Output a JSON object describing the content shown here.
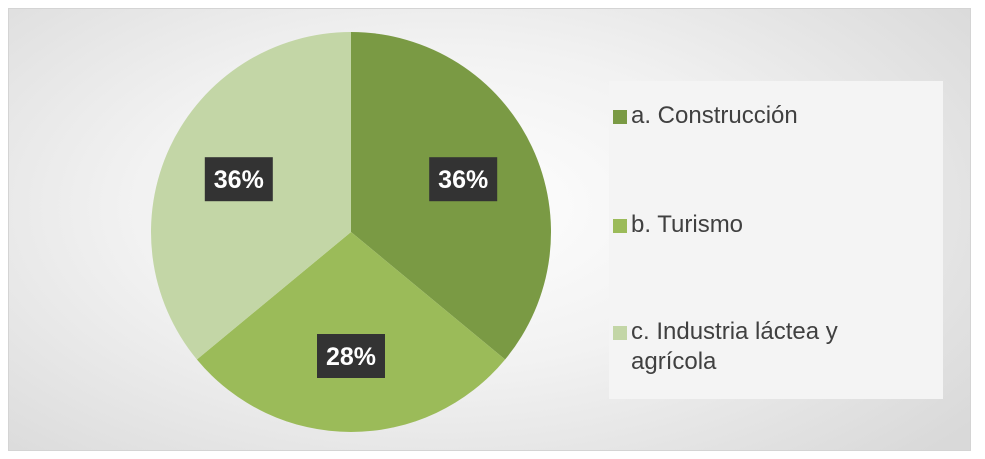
{
  "chart_data": {
    "type": "pie",
    "title": "",
    "slices": [
      {
        "label": "a. Construcción",
        "value": 36,
        "display": "36%",
        "color": "#7a9a44"
      },
      {
        "label": "b. Turismo",
        "value": 28,
        "display": "28%",
        "color": "#9bbb59"
      },
      {
        "label": "c. Industria láctea y agrícola",
        "value": 36,
        "display": "36%",
        "color": "#c3d6a6"
      }
    ],
    "start_angle_deg": 0,
    "direction": "clockwise",
    "data_label_style": {
      "background": "#333333",
      "color": "#ffffff"
    },
    "legend_position": "right"
  }
}
